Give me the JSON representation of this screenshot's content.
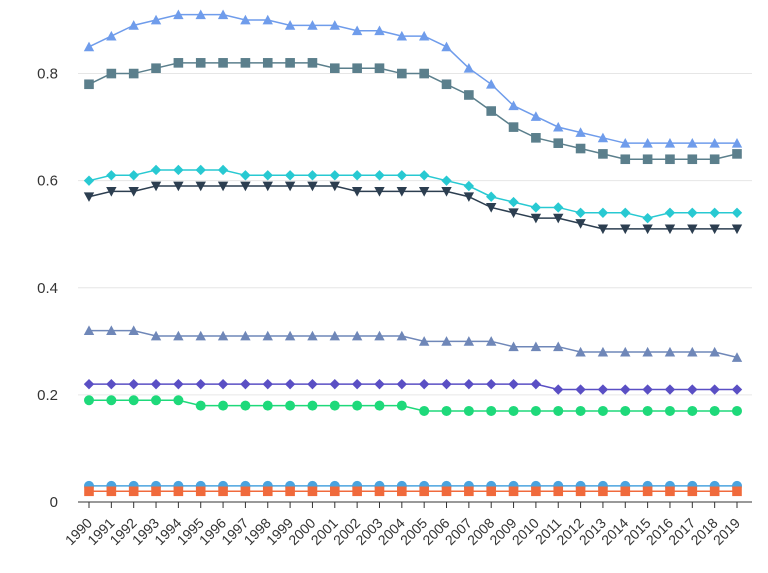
{
  "chart_data": {
    "type": "line",
    "x": [
      1990,
      1991,
      1992,
      1993,
      1994,
      1995,
      1996,
      1997,
      1998,
      1999,
      2000,
      2001,
      2002,
      2003,
      2004,
      2005,
      2006,
      2007,
      2008,
      2009,
      2010,
      2011,
      2012,
      2013,
      2014,
      2015,
      2016,
      2017,
      2018,
      2019
    ],
    "x_tick_labels": [
      "1990",
      "1991",
      "1992",
      "1993",
      "1994",
      "1995",
      "1996",
      "1997",
      "1998",
      "1999",
      "2000",
      "2001",
      "2002",
      "2003",
      "2004",
      "2005",
      "2006",
      "2007",
      "2008",
      "2009",
      "2010",
      "2011",
      "2012",
      "2013",
      "2014",
      "2015",
      "2016",
      "2017",
      "2018",
      "2019"
    ],
    "ylim": [
      0,
      0.9
    ],
    "y_ticks": [
      0,
      0.2,
      0.4,
      0.6,
      0.8
    ],
    "y_tick_labels": [
      "0",
      "0.2",
      "0.4",
      "0.6",
      "0.8"
    ],
    "grid": "horizontal",
    "legend": "none",
    "series": [
      {
        "color": "#6f9ceb",
        "marker": "triangle-up",
        "values": [
          0.85,
          0.87,
          0.89,
          0.9,
          0.91,
          0.91,
          0.91,
          0.9,
          0.9,
          0.89,
          0.89,
          0.89,
          0.88,
          0.88,
          0.87,
          0.87,
          0.85,
          0.81,
          0.78,
          0.74,
          0.72,
          0.7,
          0.69,
          0.68,
          0.67,
          0.67,
          0.67,
          0.67,
          0.67,
          0.67
        ]
      },
      {
        "color": "#5b7f8c",
        "marker": "square",
        "values": [
          0.78,
          0.8,
          0.8,
          0.81,
          0.82,
          0.82,
          0.82,
          0.82,
          0.82,
          0.82,
          0.82,
          0.81,
          0.81,
          0.81,
          0.8,
          0.8,
          0.78,
          0.76,
          0.73,
          0.7,
          0.68,
          0.67,
          0.66,
          0.65,
          0.64,
          0.64,
          0.64,
          0.64,
          0.64,
          0.65
        ]
      },
      {
        "color": "#28c9d2",
        "marker": "diamond",
        "values": [
          0.6,
          0.61,
          0.61,
          0.62,
          0.62,
          0.62,
          0.62,
          0.61,
          0.61,
          0.61,
          0.61,
          0.61,
          0.61,
          0.61,
          0.61,
          0.61,
          0.6,
          0.59,
          0.57,
          0.56,
          0.55,
          0.55,
          0.54,
          0.54,
          0.54,
          0.53,
          0.54,
          0.54,
          0.54,
          0.54
        ]
      },
      {
        "color": "#2c3e50",
        "marker": "triangle-down",
        "values": [
          0.57,
          0.58,
          0.58,
          0.59,
          0.59,
          0.59,
          0.59,
          0.59,
          0.59,
          0.59,
          0.59,
          0.59,
          0.58,
          0.58,
          0.58,
          0.58,
          0.58,
          0.57,
          0.55,
          0.54,
          0.53,
          0.53,
          0.52,
          0.51,
          0.51,
          0.51,
          0.51,
          0.51,
          0.51,
          0.51
        ]
      },
      {
        "color": "#6f87b8",
        "marker": "triangle-up",
        "values": [
          0.32,
          0.32,
          0.32,
          0.31,
          0.31,
          0.31,
          0.31,
          0.31,
          0.31,
          0.31,
          0.31,
          0.31,
          0.31,
          0.31,
          0.31,
          0.3,
          0.3,
          0.3,
          0.3,
          0.29,
          0.29,
          0.29,
          0.28,
          0.28,
          0.28,
          0.28,
          0.28,
          0.28,
          0.28,
          0.27
        ]
      },
      {
        "color": "#5a4fc4",
        "marker": "diamond",
        "values": [
          0.22,
          0.22,
          0.22,
          0.22,
          0.22,
          0.22,
          0.22,
          0.22,
          0.22,
          0.22,
          0.22,
          0.22,
          0.22,
          0.22,
          0.22,
          0.22,
          0.22,
          0.22,
          0.22,
          0.22,
          0.22,
          0.21,
          0.21,
          0.21,
          0.21,
          0.21,
          0.21,
          0.21,
          0.21,
          0.21
        ]
      },
      {
        "color": "#1ed97a",
        "marker": "circle",
        "values": [
          0.19,
          0.19,
          0.19,
          0.19,
          0.19,
          0.18,
          0.18,
          0.18,
          0.18,
          0.18,
          0.18,
          0.18,
          0.18,
          0.18,
          0.18,
          0.17,
          0.17,
          0.17,
          0.17,
          0.17,
          0.17,
          0.17,
          0.17,
          0.17,
          0.17,
          0.17,
          0.17,
          0.17,
          0.17,
          0.17
        ]
      },
      {
        "color": "#4aa3df",
        "marker": "circle",
        "values": [
          0.03,
          0.03,
          0.03,
          0.03,
          0.03,
          0.03,
          0.03,
          0.03,
          0.03,
          0.03,
          0.03,
          0.03,
          0.03,
          0.03,
          0.03,
          0.03,
          0.03,
          0.03,
          0.03,
          0.03,
          0.03,
          0.03,
          0.03,
          0.03,
          0.03,
          0.03,
          0.03,
          0.03,
          0.03,
          0.03
        ]
      },
      {
        "color": "#f06a3c",
        "marker": "square",
        "values": [
          0.02,
          0.02,
          0.02,
          0.02,
          0.02,
          0.02,
          0.02,
          0.02,
          0.02,
          0.02,
          0.02,
          0.02,
          0.02,
          0.02,
          0.02,
          0.02,
          0.02,
          0.02,
          0.02,
          0.02,
          0.02,
          0.02,
          0.02,
          0.02,
          0.02,
          0.02,
          0.02,
          0.02,
          0.02,
          0.02
        ]
      }
    ]
  }
}
